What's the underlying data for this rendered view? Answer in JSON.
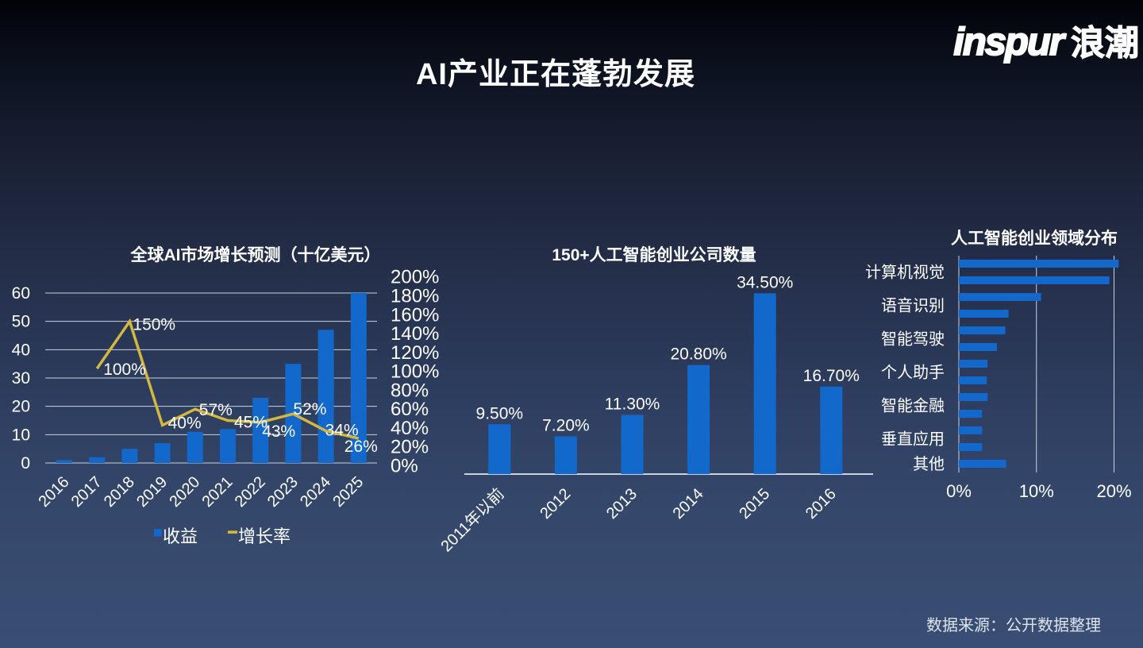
{
  "page": {
    "title": "AI产业正在蓬勃发展",
    "logo": {
      "latin": "inspur",
      "cjk": "浪潮"
    },
    "source_note": "数据来源：公开数据整理",
    "colors": {
      "bar": "#1268cb",
      "line": "#d4b83e",
      "grid": "#c9d2e0",
      "text": "#ffffff"
    }
  },
  "chart_data": [
    {
      "id": "market_forecast",
      "type": "bar+line",
      "title": "全球AI市场增长预测（十亿美元）",
      "categories": [
        "2016",
        "2017",
        "2018",
        "2019",
        "2020",
        "2021",
        "2022",
        "2023",
        "2024",
        "2025"
      ],
      "series": [
        {
          "name": "收益",
          "type": "bar",
          "axis": "left",
          "values": [
            1,
            2,
            5,
            7,
            11,
            12,
            23,
            35,
            47,
            60
          ]
        },
        {
          "name": "增长率",
          "type": "line",
          "axis": "right",
          "values": [
            null,
            100,
            150,
            40,
            57,
            45,
            43,
            52,
            34,
            26
          ],
          "labels": [
            "",
            "100%",
            "150%",
            "40%",
            "57%",
            "45%",
            "43%",
            "52%",
            "34%",
            "26%"
          ]
        }
      ],
      "left_axis": {
        "ticks": [
          0,
          10,
          20,
          30,
          40,
          50,
          60
        ],
        "min": 0,
        "max": 60
      },
      "right_axis": {
        "ticks": [
          0,
          20,
          40,
          60,
          80,
          100,
          120,
          140,
          160,
          180,
          200
        ],
        "min": 0,
        "max": 200
      },
      "legend": [
        "收益",
        "增长率"
      ],
      "grid": true
    },
    {
      "id": "startup_count",
      "type": "bar",
      "title": "150+人工智能创业公司数量",
      "categories": [
        "2011年以前",
        "2012",
        "2013",
        "2014",
        "2015",
        "2016"
      ],
      "values": [
        9.5,
        7.2,
        11.3,
        20.8,
        34.5,
        16.7
      ],
      "labels": [
        "9.50%",
        "7.20%",
        "11.30%",
        "20.80%",
        "34.50%",
        "16.70%"
      ],
      "ylim": [
        0,
        40
      ],
      "grid": false
    },
    {
      "id": "startup_fields",
      "type": "hbar",
      "title": "人工智能创业领域分布",
      "rows": [
        {
          "label": "计算机视觉",
          "values": [
            20.6,
            19.4
          ]
        },
        {
          "label": "语音识别",
          "values": [
            10.6,
            6.4
          ]
        },
        {
          "label": "智能驾驶",
          "values": [
            6.0,
            4.9
          ]
        },
        {
          "label": "个人助手",
          "values": [
            3.7,
            3.6
          ]
        },
        {
          "label": "智能金融",
          "values": [
            3.7,
            3.0
          ]
        },
        {
          "label": "垂直应用",
          "values": [
            3.0,
            3.0
          ]
        },
        {
          "label": "其他",
          "values": [
            6.1
          ]
        }
      ],
      "x_ticks": [
        {
          "value": 0,
          "label": "0%"
        },
        {
          "value": 10,
          "label": "10%"
        },
        {
          "value": 20,
          "label": "20%"
        }
      ],
      "xlim": [
        0,
        22
      ],
      "grid": true
    }
  ]
}
